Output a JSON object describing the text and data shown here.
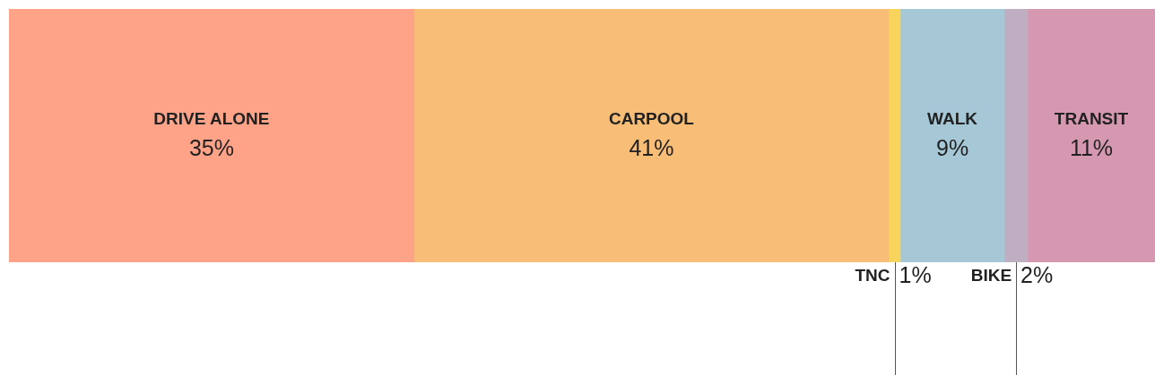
{
  "chart_data": {
    "type": "bar",
    "orientation": "horizontal",
    "stacked": true,
    "categories": [
      null
    ],
    "legend": false,
    "series": [
      {
        "name": "DRIVE ALONE",
        "color": "#ffa388",
        "values": [
          35
        ],
        "value_labels": [
          "35%"
        ]
      },
      {
        "name": "CARPOOL",
        "color": "#f8bd77",
        "values": [
          41
        ],
        "value_labels": [
          "41%"
        ]
      },
      {
        "name": "TNC",
        "color": "#f9d45c",
        "values": [
          1
        ],
        "value_labels": [
          "1%"
        ]
      },
      {
        "name": "WALK",
        "color": "#a5c7d6",
        "values": [
          9
        ],
        "value_labels": [
          "9%"
        ]
      },
      {
        "name": "BIKE",
        "color": "#bfaec2",
        "values": [
          2
        ],
        "value_labels": [
          "2%"
        ]
      },
      {
        "name": "TRANSIT",
        "color": "#d698b0",
        "values": [
          11
        ],
        "value_labels": [
          "11%"
        ]
      }
    ]
  }
}
